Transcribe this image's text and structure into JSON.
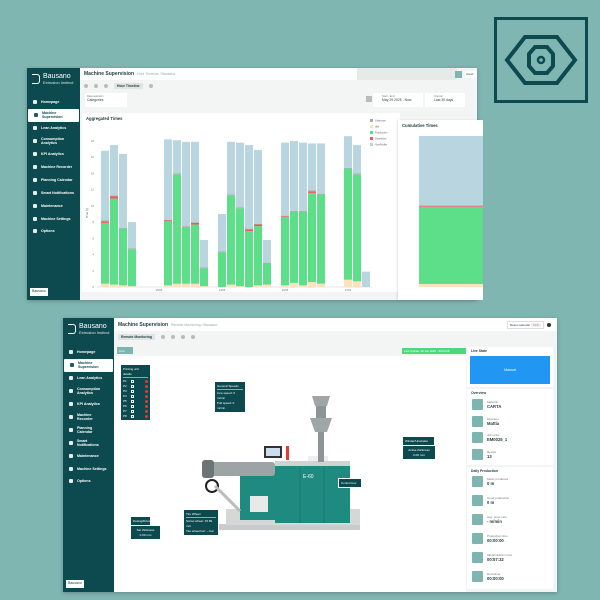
{
  "colors": {
    "background": "#80b6b2",
    "sidebar": "#0d4a4f",
    "accent": "#2196f3",
    "idle": "#fde2bc",
    "production": "#5ddf8a",
    "downtime": "#ec5a5a",
    "unknown": "#a9a9a9",
    "nonprofile": "#b9d6e0",
    "update": "#4cd97b"
  },
  "brand": {
    "name": "Bausano",
    "tagline": "Extrusion Instinct",
    "badge_icon": "eye-icon"
  },
  "sidebar": {
    "items": [
      {
        "label": "Homepage",
        "icon": "home-icon"
      },
      {
        "label": "Machine Supervision",
        "icon": "eye-icon",
        "active": true
      },
      {
        "label": "Lean Analytics",
        "icon": "trend-icon"
      },
      {
        "label": "Consumption Analytics",
        "icon": "bulb-icon"
      },
      {
        "label": "KPI Analytics",
        "icon": "gauge-icon"
      },
      {
        "label": "Machine Recorder",
        "icon": "recorder-icon"
      },
      {
        "label": "Planning Calendar",
        "icon": "calendar-icon"
      },
      {
        "label": "Smart Notifications",
        "icon": "flag-icon"
      },
      {
        "label": "Maintenance",
        "icon": "wrench-icon"
      },
      {
        "label": "Machine Settings",
        "icon": "gear-icon"
      },
      {
        "label": "Options",
        "icon": "options-icon"
      }
    ],
    "user": "Bausano"
  },
  "top": {
    "title": "Machine Supervision",
    "crumb": "Hour Timeline / Bausano",
    "tab": "Hour Timeline",
    "data_selection_label": "Data selection",
    "data_selection": "Categories",
    "date_label": "Start - End",
    "date_value": "May 29 2025 - Now",
    "interval_label": "Interval",
    "interval_value": "Last 30 days",
    "accel": "Accel",
    "aggregated_title": "Aggregated Times",
    "cumulative_title": "Cumulative Times"
  },
  "chart_data": [
    {
      "type": "bar",
      "stacked": true,
      "title": "Aggregated Times",
      "ylabel": "Time [h]",
      "ylim": [
        0,
        18
      ],
      "yticks": [
        0,
        2,
        4,
        6,
        8,
        10,
        12,
        14,
        16,
        18
      ],
      "xticks": [
        "06/06",
        "13/06",
        "20/06",
        "27/06"
      ],
      "xtick_year": "2025",
      "legend_position": "top-right",
      "series_names": [
        "Unknown",
        "Idle",
        "Production",
        "Downtime",
        "NonProfile"
      ],
      "slots": 30,
      "bars": [
        {
          "slot": 0,
          "idle": 0.4,
          "production": 7.5,
          "downtime": 0.2,
          "unknown": 0.1,
          "nonprofile": 8.6
        },
        {
          "slot": 1,
          "idle": 0.3,
          "production": 10.6,
          "downtime": 0.3,
          "unknown": 0.1,
          "nonprofile": 6.2
        },
        {
          "slot": 2,
          "idle": 0.2,
          "production": 7.0,
          "downtime": 0,
          "unknown": 0.1,
          "nonprofile": 9.1
        },
        {
          "slot": 3,
          "idle": 0.1,
          "production": 4.55,
          "downtime": 0,
          "unknown": 0.1,
          "nonprofile": 3.25
        },
        {
          "slot": 7,
          "idle": 0.2,
          "production": 7.9,
          "downtime": 0.1,
          "unknown": 0.1,
          "nonprofile": 9.9
        },
        {
          "slot": 8,
          "idle": 0.4,
          "production": 13.5,
          "downtime": 0,
          "unknown": 0.1,
          "nonprofile": 4.1
        },
        {
          "slot": 9,
          "idle": 0.4,
          "production": 7.0,
          "downtime": 0,
          "unknown": 0.1,
          "nonprofile": 10.4
        },
        {
          "slot": 10,
          "idle": 0.4,
          "production": 7.3,
          "downtime": 0.2,
          "unknown": 0.1,
          "nonprofile": 9.9
        },
        {
          "slot": 11,
          "idle": 0.1,
          "production": 2.2,
          "downtime": 0,
          "unknown": 0.1,
          "nonprofile": 3.4
        },
        {
          "slot": 13,
          "idle": 0,
          "production": 4.3,
          "downtime": 0,
          "unknown": 0.1,
          "nonprofile": 4.6
        },
        {
          "slot": 14,
          "idle": 0.3,
          "production": 11.0,
          "downtime": 0,
          "unknown": 0.1,
          "nonprofile": 6.5
        },
        {
          "slot": 15,
          "idle": 0.1,
          "production": 9.6,
          "downtime": 0,
          "unknown": 0.1,
          "nonprofile": 8.0
        },
        {
          "slot": 16,
          "idle": 0,
          "production": 6.9,
          "downtime": 0.2,
          "unknown": 0.1,
          "nonprofile": 10.3
        },
        {
          "slot": 17,
          "idle": 0.2,
          "production": 7.3,
          "downtime": 0.2,
          "unknown": 0.1,
          "nonprofile": 9.1
        },
        {
          "slot": 18,
          "idle": 0.3,
          "production": 2.6,
          "downtime": 0,
          "unknown": 0.1,
          "nonprofile": 2.8
        },
        {
          "slot": 20,
          "idle": 0.2,
          "production": 8.4,
          "downtime": 0.1,
          "unknown": 0.1,
          "nonprofile": 9.0
        },
        {
          "slot": 21,
          "idle": 0.5,
          "production": 8.8,
          "downtime": 0,
          "unknown": 0.1,
          "nonprofile": 8.6
        },
        {
          "slot": 22,
          "idle": 0.2,
          "production": 9.1,
          "downtime": 0,
          "unknown": 0.1,
          "nonprofile": 8.4
        },
        {
          "slot": 23,
          "idle": 0.6,
          "production": 11.0,
          "downtime": 0.2,
          "unknown": 0.1,
          "nonprofile": 5.8
        },
        {
          "slot": 24,
          "idle": 0.4,
          "production": 11.0,
          "downtime": 0,
          "unknown": 0.1,
          "nonprofile": 6.2
        },
        {
          "slot": 27,
          "idle": 0.9,
          "production": 13.7,
          "downtime": 0,
          "unknown": 0.1,
          "nonprofile": 3.9
        },
        {
          "slot": 28,
          "idle": 0.7,
          "production": 13.2,
          "downtime": 0,
          "unknown": 0.1,
          "nonprofile": 3.5
        },
        {
          "slot": 29,
          "idle": 0,
          "production": 0,
          "downtime": 0,
          "unknown": 0,
          "nonprofile": 1.9
        }
      ]
    },
    {
      "type": "bar",
      "stacked": true,
      "title": "Cumulative Times",
      "unit": "percent",
      "values": {
        "idle": 2,
        "production": 51,
        "downtime": 0.5,
        "unknown": 0.5,
        "nonprofile": 46
      }
    }
  ],
  "bottom": {
    "title": "Machine Supervision",
    "crumb": "Remote Monitoring / Bausano",
    "tab": "Remote Monitoring",
    "line_button": "Line",
    "reset_calendar": "Reset calendar",
    "toggle": "OFF",
    "last_update": "Last Update: 30 Jun 2025 - 09:04:38",
    "printing": {
      "title": "Printing unit details",
      "units": [
        "P1",
        "P2",
        "P3",
        "P4",
        "P5",
        "P6",
        "P7",
        "P8"
      ]
    },
    "speeds": {
      "title": "General Speeds",
      "rows": [
        "Line speed: 0 m/min",
        "Pull speed: 0 m/min"
      ]
    },
    "tire": {
      "title": "Tire Wheel",
      "rows": [
        "Screw wheel: 15.89 m/s",
        "Tire wheel bar: -- bar"
      ]
    },
    "dosing": {
      "title": "Dosing/Drive",
      "set": "Set thickness",
      "set_value": "0.00 mm"
    },
    "winder": {
      "title": "Winder/Unwinder",
      "active": "Active thickness",
      "active_value": "0.00 mm"
    },
    "control": "Control box",
    "machine_model": "E-60",
    "live_state": {
      "title": "Live State",
      "value": "Manual"
    },
    "overview": {
      "title": "Overview",
      "items": [
        {
          "label": "Material",
          "value": "CARTA"
        },
        {
          "label": "Operator",
          "value": "Mattia"
        },
        {
          "label": "Job order",
          "value": "EM0025_1"
        },
        {
          "label": "Recipe",
          "value": "13"
        }
      ]
    },
    "daily": {
      "title": "Daily Production",
      "items": [
        {
          "label": "Meter produced",
          "value": "0 m"
        },
        {
          "label": "Good production",
          "value": "0 m"
        },
        {
          "label": "Avg. prod. rate",
          "value": "- m/min"
        },
        {
          "label": "Production time",
          "value": "00:00:00"
        },
        {
          "label": "Idle/shutdown time",
          "value": "00:57:32"
        },
        {
          "label": "Downtime",
          "value": "00:00:00"
        }
      ]
    }
  }
}
